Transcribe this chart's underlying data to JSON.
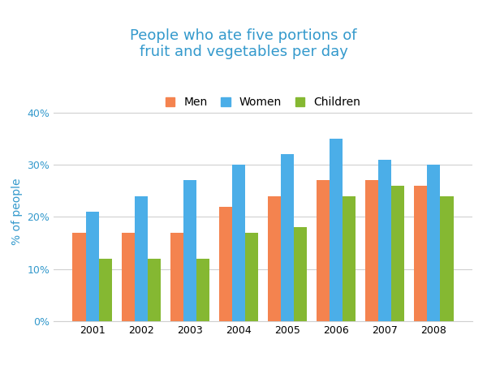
{
  "title": "People who ate five portions of\nfruit and vegetables per day",
  "ylabel": "% of people",
  "years": [
    2001,
    2002,
    2003,
    2004,
    2005,
    2006,
    2007,
    2008
  ],
  "men": [
    17,
    17,
    17,
    22,
    24,
    27,
    27,
    26
  ],
  "women": [
    21,
    24,
    27,
    30,
    32,
    35,
    31,
    30
  ],
  "children": [
    12,
    12,
    12,
    17,
    18,
    24,
    26,
    24
  ],
  "men_color": "#F4834F",
  "women_color": "#4BAEE8",
  "children_color": "#85B832",
  "title_color": "#3399CC",
  "axis_color": "#3399CC",
  "yticks": [
    0,
    10,
    20,
    30,
    40
  ],
  "ylim": [
    0,
    42
  ],
  "background_color": "#ffffff",
  "title_fontsize": 13,
  "legend_fontsize": 10,
  "tick_fontsize": 9,
  "ylabel_fontsize": 10,
  "bar_width": 0.27,
  "grid_color": "#d0d0d0"
}
